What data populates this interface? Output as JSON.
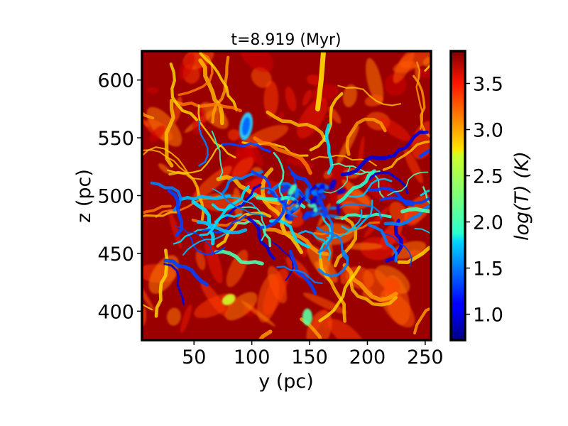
{
  "chart_data": {
    "type": "heatmap",
    "title": "t=8.919 (Myr)",
    "xlabel": "y (pc)",
    "ylabel": "z (pc)",
    "xlim": [
      5,
      255
    ],
    "ylim": [
      375,
      625
    ],
    "xticks": [
      50,
      100,
      150,
      200,
      250
    ],
    "yticks": [
      400,
      450,
      500,
      550,
      600
    ],
    "colorbar": {
      "label": "log(T) (K)",
      "range": [
        0.72,
        3.85
      ],
      "ticks": [
        1.0,
        1.5,
        2.0,
        2.5,
        3.0,
        3.5
      ],
      "colormap": "jet"
    },
    "description_values": {
      "hot_background_logT": 3.8,
      "cold_filaments_logT_min": 0.8
    },
    "grid": false
  },
  "colors": {
    "jet_low": "#00007f",
    "jet_high": "#7f0000",
    "frame": "#000000"
  }
}
